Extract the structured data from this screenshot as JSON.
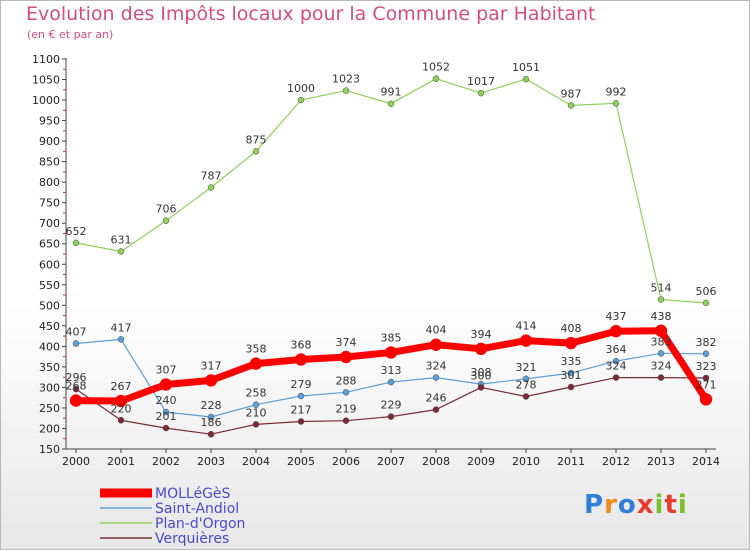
{
  "title": "Evolution des Impôts locaux pour la Commune par Habitant",
  "subtitle": "(en € et par an)",
  "logo": {
    "text": "Proxiti",
    "colors": [
      "#2f7fd6",
      "#f08c1a",
      "#2f7fd6",
      "#e83b2c",
      "#7bbf2a",
      "#e83b2c",
      "#7bbf2a"
    ]
  },
  "chart_data": {
    "type": "line",
    "x": [
      2000,
      2001,
      2002,
      2003,
      2004,
      2005,
      2006,
      2007,
      2008,
      2009,
      2010,
      2011,
      2012,
      2013,
      2014
    ],
    "ylim": [
      150,
      1100
    ],
    "yticks": [
      150,
      200,
      250,
      300,
      350,
      400,
      450,
      500,
      550,
      600,
      650,
      700,
      750,
      800,
      850,
      900,
      950,
      1000,
      1050,
      1100
    ],
    "grid": false,
    "legend_position": "bottom-left",
    "series": [
      {
        "name": "Plan-d'Orgon",
        "color": "#8fd05a",
        "width": 1.2,
        "marker": 3,
        "values": [
          652,
          631,
          706,
          787,
          875,
          1000,
          1023,
          991,
          1052,
          1017,
          1051,
          987,
          992,
          514,
          506
        ]
      },
      {
        "name": "Saint-Andiol",
        "color": "#5b9fd8",
        "width": 1.2,
        "marker": 3,
        "values": [
          407,
          417,
          240,
          228,
          258,
          279,
          288,
          313,
          324,
          308,
          321,
          335,
          364,
          383,
          382
        ]
      },
      {
        "name": "Verquières",
        "color": "#7a2a35",
        "width": 1.2,
        "marker": 3,
        "values": [
          296,
          220,
          201,
          186,
          210,
          217,
          219,
          229,
          246,
          300,
          278,
          301,
          324,
          324,
          323
        ]
      },
      {
        "name": "MOLLéGèS",
        "color": "#ff0000",
        "width": 7,
        "marker": 6,
        "values": [
          268,
          267,
          307,
          317,
          358,
          368,
          374,
          385,
          404,
          394,
          414,
          408,
          437,
          438,
          271
        ]
      }
    ],
    "legend_order": [
      "MOLLéGèS",
      "Saint-Andiol",
      "Plan-d'Orgon",
      "Verquières"
    ]
  }
}
